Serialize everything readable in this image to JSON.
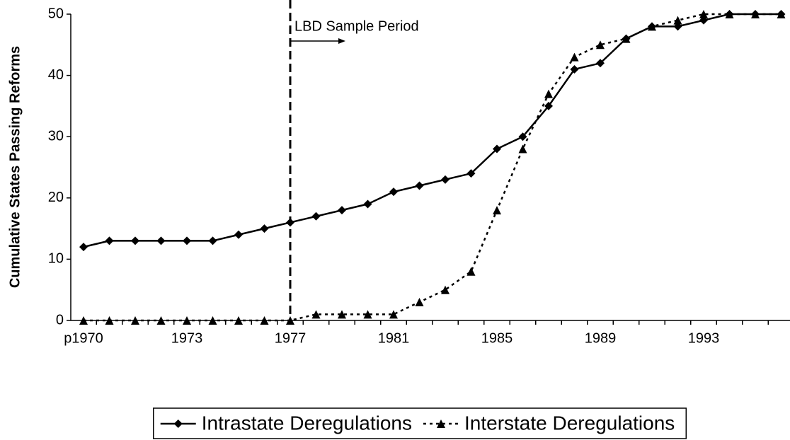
{
  "chart_data": {
    "type": "line",
    "y_label": "Cumulative States Passing Reforms",
    "categories": [
      "p1970",
      null,
      null,
      null,
      "1973",
      null,
      null,
      null,
      "1977",
      null,
      null,
      null,
      "1981",
      null,
      null,
      null,
      "1985",
      null,
      null,
      null,
      "1989",
      null,
      null,
      null,
      "1993",
      null,
      null,
      null
    ],
    "series": [
      {
        "name": "Intrastate Deregulations",
        "color": "#000000",
        "marker": "diamond",
        "dashed": false,
        "values": [
          12,
          13,
          13,
          13,
          13,
          13,
          14,
          15,
          16,
          17,
          18,
          19,
          21,
          22,
          23,
          24,
          28,
          30,
          35,
          41,
          42,
          46,
          48,
          48,
          49,
          50,
          50,
          50
        ]
      },
      {
        "name": "Interstate Deregulations",
        "color": "#000000",
        "marker": "triangle",
        "dashed": true,
        "values": [
          0,
          0,
          0,
          0,
          0,
          0,
          0,
          0,
          0,
          1,
          1,
          1,
          1,
          3,
          5,
          8,
          18,
          28,
          37,
          43,
          45,
          46,
          48,
          49,
          50,
          50,
          50,
          50
        ]
      }
    ],
    "annotation": {
      "text": "LBD Sample Period",
      "x": "1977"
    },
    "ylim": [
      0,
      50
    ],
    "yticks": [
      0,
      10,
      20,
      30,
      40,
      50
    ],
    "grid": false,
    "legend": "bottom"
  }
}
